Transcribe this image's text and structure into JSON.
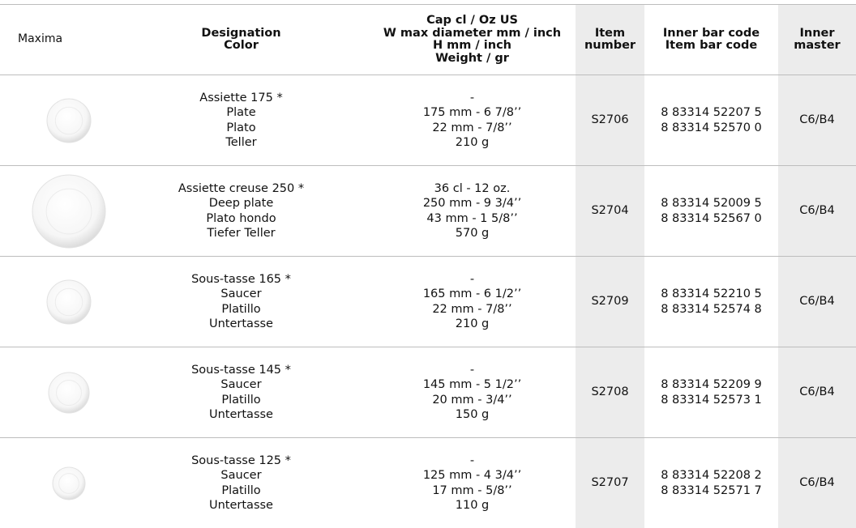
{
  "table": {
    "brand": "Maxima",
    "headers": [
      [
        "Designation",
        "Color"
      ],
      [
        "Cap cl / Oz US",
        "W max diameter mm / inch",
        "H mm / inch",
        "Weight / gr"
      ],
      [
        "Item",
        "number"
      ],
      [
        "Inner  bar code",
        "Item bar code"
      ],
      [
        "Inner",
        "master"
      ]
    ],
    "rows": [
      {
        "designation": [
          "Assiette 175 *",
          "Plate",
          "Plato",
          "Teller"
        ],
        "specs": [
          "-",
          "175 mm - 6 7/8’’",
          "22 mm - 7/8’’",
          "210 g"
        ],
        "item": "S2706",
        "barcodes": [
          "8 83314 52207 5",
          "8 83314 52570 0"
        ],
        "master": "C6/B4"
      },
      {
        "designation": [
          "Assiette creuse 250 *",
          "Deep plate",
          "Plato hondo",
          "Tiefer Teller"
        ],
        "specs": [
          "36 cl - 12 oz.",
          "250 mm - 9 3/4’’",
          "43 mm - 1 5/8’’",
          "570 g"
        ],
        "item": "S2704",
        "barcodes": [
          "8 83314 52009 5",
          "8 83314 52567 0"
        ],
        "master": "C6/B4"
      },
      {
        "designation": [
          "Sous-tasse 165 *",
          "Saucer",
          "Platillo",
          "Untertasse"
        ],
        "specs": [
          "-",
          "165 mm - 6 1/2’’",
          "22 mm - 7/8’’",
          "210 g"
        ],
        "item": "S2709",
        "barcodes": [
          "8 83314 52210 5",
          "8 83314 52574 8"
        ],
        "master": "C6/B4"
      },
      {
        "designation": [
          "Sous-tasse 145 *",
          "Saucer",
          "Platillo",
          "Untertasse"
        ],
        "specs": [
          "-",
          "145 mm - 5 1/2’’",
          "20 mm - 3/4’’",
          "150 g"
        ],
        "item": "S2708",
        "barcodes": [
          "8 83314 52209 9",
          "8 83314 52573 1"
        ],
        "master": "C6/B4"
      },
      {
        "designation": [
          "Sous-tasse 125 *",
          "Saucer",
          "Platillo",
          "Untertasse"
        ],
        "specs": [
          "-",
          "125 mm - 4 3/4’’",
          "17 mm - 5/8’’",
          "110 g"
        ],
        "item": "S2707",
        "barcodes": [
          "8 83314 52208 2",
          "8 83314 52571 7"
        ],
        "master": "C6/B4"
      }
    ]
  }
}
